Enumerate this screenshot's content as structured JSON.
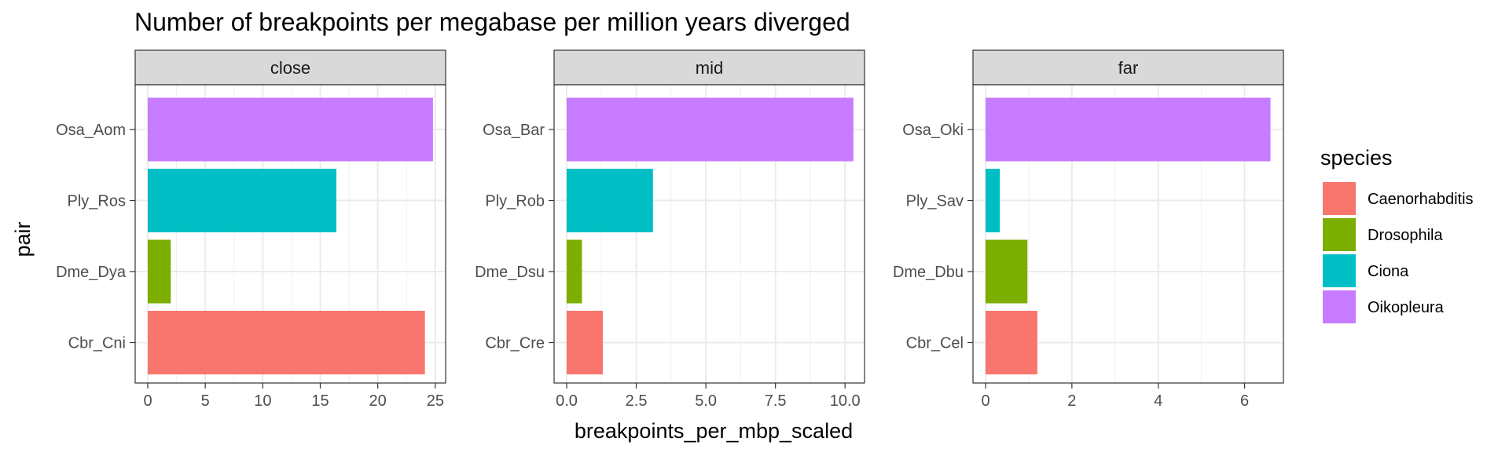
{
  "chart_data": {
    "type": "bar",
    "orientation": "horizontal",
    "title": "Number of breakpoints per megabase per million years diverged",
    "xlabel": "breakpoints_per_mbp_scaled",
    "ylabel": "pair",
    "grid": true,
    "legend": {
      "title": "species",
      "placement": "right",
      "entries": [
        {
          "name": "Caenorhabditis",
          "color": "#F8766D"
        },
        {
          "name": "Drosophila",
          "color": "#7CAE00"
        },
        {
          "name": "Ciona",
          "color": "#00BFC4"
        },
        {
          "name": "Oikopleura",
          "color": "#C77CFF"
        }
      ]
    },
    "facets": [
      {
        "label": "close",
        "xlim": [
          0,
          25.9
        ],
        "xticks": [
          "0",
          "5",
          "10",
          "15",
          "20",
          "25"
        ],
        "xtick_values": [
          0,
          5,
          10,
          15,
          20,
          25
        ],
        "bars": [
          {
            "pair": "Osa_Aom",
            "species": "Oikopleura",
            "value": 24.8
          },
          {
            "pair": "Ply_Ros",
            "species": "Ciona",
            "value": 16.4
          },
          {
            "pair": "Dme_Dya",
            "species": "Drosophila",
            "value": 2.0
          },
          {
            "pair": "Cbr_Cni",
            "species": "Caenorhabditis",
            "value": 24.1
          }
        ]
      },
      {
        "label": "mid",
        "xlim": [
          0,
          10.7
        ],
        "xticks": [
          "0.0",
          "2.5",
          "5.0",
          "7.5",
          "10.0"
        ],
        "xtick_values": [
          0,
          2.5,
          5,
          7.5,
          10
        ],
        "bars": [
          {
            "pair": "Osa_Bar",
            "species": "Oikopleura",
            "value": 10.3
          },
          {
            "pair": "Ply_Rob",
            "species": "Ciona",
            "value": 3.1
          },
          {
            "pair": "Dme_Dsu",
            "species": "Drosophila",
            "value": 0.55
          },
          {
            "pair": "Cbr_Cre",
            "species": "Caenorhabditis",
            "value": 1.3
          }
        ]
      },
      {
        "label": "far",
        "xlim": [
          0,
          6.9
        ],
        "xticks": [
          "0",
          "2",
          "4",
          "6"
        ],
        "xtick_values": [
          0,
          2,
          4,
          6
        ],
        "bars": [
          {
            "pair": "Osa_Oki",
            "species": "Oikopleura",
            "value": 6.6
          },
          {
            "pair": "Ply_Sav",
            "species": "Ciona",
            "value": 0.33
          },
          {
            "pair": "Dme_Dbu",
            "species": "Drosophila",
            "value": 0.97
          },
          {
            "pair": "Cbr_Cel",
            "species": "Caenorhabditis",
            "value": 1.2
          }
        ]
      }
    ]
  }
}
